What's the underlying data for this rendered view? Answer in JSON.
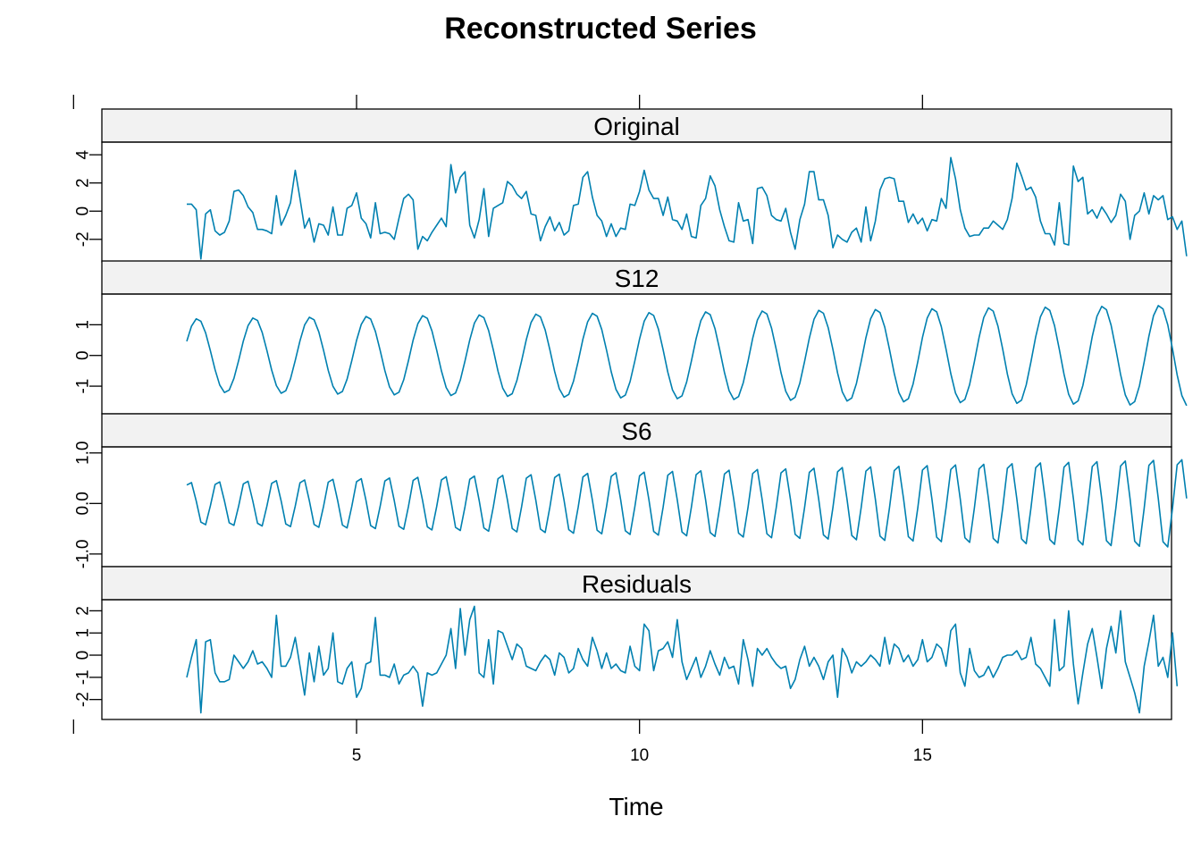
{
  "chart_data": {
    "type": "line",
    "title": "Reconstructed Series",
    "xlabel": "Time",
    "xlim": [
      0.5,
      19.4
    ],
    "x_ticks": [
      5,
      10,
      15
    ],
    "x_start": 2,
    "x_step": 0.0833333,
    "line_color": "#0080b0",
    "panels": [
      {
        "name": "Original",
        "ylim": [
          -3.6,
          4.9
        ],
        "y_ticks": [
          -2,
          0,
          2,
          4
        ],
        "values": [
          0.5,
          0.5,
          0.1,
          -3.4,
          -0.2,
          0.1,
          -1.4,
          -1.7,
          -1.5,
          -0.7,
          1.4,
          1.5,
          1.1,
          0.3,
          -0.1,
          -1.3,
          -1.3,
          -1.4,
          -1.6,
          1.1,
          -1.0,
          -0.3,
          0.6,
          2.9,
          0.9,
          -1.2,
          -0.5,
          -2.2,
          -0.9,
          -1.0,
          -1.7,
          0.3,
          -1.7,
          -1.7,
          0.2,
          0.4,
          1.3,
          -0.5,
          -0.9,
          -1.9,
          0.6,
          -1.6,
          -1.5,
          -1.6,
          -2.0,
          -0.5,
          0.9,
          1.2,
          0.8,
          -2.7,
          -1.8,
          -2.1,
          -1.5,
          -1.0,
          -0.5,
          -1.1,
          3.3,
          1.3,
          2.4,
          2.8,
          -1.0,
          -1.9,
          -0.6,
          1.6,
          -1.8,
          0.2,
          0.4,
          0.6,
          2.1,
          1.8,
          1.2,
          0.9,
          1.4,
          -0.2,
          -0.3,
          -2.1,
          -1.1,
          -0.4,
          -1.4,
          -0.8,
          -1.7,
          -1.4,
          0.4,
          0.5,
          2.4,
          2.8,
          1.0,
          -0.3,
          -0.7,
          -1.8,
          -0.9,
          -1.8,
          -1.2,
          -1.3,
          0.5,
          0.4,
          1.4,
          2.9,
          1.5,
          0.9,
          0.9,
          -0.3,
          1.0,
          -0.6,
          -0.7,
          -1.3,
          -0.2,
          -1.8,
          -1.9,
          0.4,
          0.9,
          2.5,
          1.8,
          0.1,
          -1.1,
          -2.1,
          -2.2,
          0.6,
          -0.7,
          -0.6,
          -2.3,
          1.6,
          1.7,
          1.1,
          -0.3,
          -0.6,
          -0.7,
          0.2,
          -1.5,
          -2.7,
          -0.6,
          0.5,
          2.8,
          2.8,
          0.8,
          0.8,
          -0.3,
          -2.6,
          -1.7,
          -2.0,
          -2.2,
          -1.5,
          -1.2,
          -2.2,
          0.3,
          -2.1,
          -0.7,
          1.5,
          2.3,
          2.4,
          2.3,
          0.7,
          0.7,
          -0.8,
          -0.2,
          -0.9,
          -0.5,
          -1.4,
          -0.6,
          -0.7,
          0.9,
          0.2,
          3.8,
          2.3,
          0.1,
          -1.2,
          -1.8,
          -1.7,
          -1.7,
          -1.2,
          -1.2,
          -0.7,
          -1.0,
          -1.3,
          -0.6,
          0.9,
          3.4,
          2.5,
          1.5,
          1.7,
          1.0,
          -0.7,
          -1.6,
          -1.6,
          -2.4,
          0.6,
          -2.3,
          -2.4,
          3.2,
          2.1,
          2.4,
          -0.2,
          0.1,
          -0.5,
          0.3,
          -0.2,
          -0.8,
          -0.3,
          1.2,
          0.7,
          -2.0,
          -0.3,
          0.0,
          1.3,
          -0.2,
          1.1,
          0.8,
          1.1,
          -0.6,
          -0.4,
          -1.3,
          -0.7,
          -3.2
        ]
      },
      {
        "name": "S12",
        "ylim": [
          -1.9,
          2.0
        ],
        "y_ticks": [
          -1,
          0,
          1
        ],
        "amplitude": [
          1.2,
          1.65
        ],
        "values_note": ""
      },
      {
        "name": "S6",
        "ylim": [
          -1.25,
          1.12
        ],
        "y_ticks": [
          -1.0,
          0.0,
          1.0
        ],
        "amplitude": [
          0.45,
          0.95
        ]
      },
      {
        "name": "Residuals",
        "ylim": [
          -2.9,
          2.5
        ],
        "y_ticks": [
          -2,
          -1,
          0,
          1,
          2
        ],
        "values": [
          -1.0,
          -0.1,
          0.7,
          -2.6,
          0.6,
          0.7,
          -0.8,
          -1.2,
          -1.2,
          -1.1,
          0.0,
          -0.3,
          -0.6,
          -0.3,
          0.2,
          -0.4,
          -0.3,
          -0.6,
          -1.0,
          1.8,
          -0.5,
          -0.5,
          -0.1,
          0.8,
          -0.5,
          -1.8,
          0.1,
          -1.2,
          0.4,
          -0.9,
          -0.6,
          1.0,
          -1.2,
          -1.3,
          -0.6,
          -0.3,
          -1.9,
          -1.5,
          -0.4,
          -0.3,
          1.7,
          -0.9,
          -0.9,
          -1.0,
          -0.4,
          -1.3,
          -0.9,
          -0.8,
          -0.5,
          -0.8,
          -2.3,
          -0.8,
          -0.9,
          -0.8,
          -0.4,
          0.0,
          1.2,
          -0.6,
          2.1,
          0.0,
          1.6,
          2.2,
          -0.8,
          -1.0,
          0.7,
          -1.3,
          1.1,
          1.0,
          0.4,
          -0.2,
          0.5,
          0.3,
          -0.5,
          -0.6,
          -0.7,
          -0.3,
          0.0,
          -0.2,
          -0.9,
          0.1,
          -0.1,
          -0.8,
          -0.6,
          0.3,
          -0.2,
          -0.5,
          0.8,
          0.2,
          -0.6,
          0.1,
          -0.6,
          -0.4,
          -0.7,
          -0.8,
          0.4,
          -0.5,
          -0.7,
          1.4,
          1.1,
          -0.7,
          0.2,
          0.3,
          0.6,
          -0.1,
          1.6,
          -0.3,
          -1.1,
          -0.6,
          -0.1,
          -1.0,
          -0.5,
          0.2,
          -0.4,
          -0.9,
          -0.1,
          -0.6,
          -0.5,
          -1.3,
          0.7,
          -0.2,
          -1.4,
          0.3,
          0.0,
          0.3,
          -0.1,
          -0.4,
          -0.6,
          -0.5,
          -1.5,
          -1.1,
          -0.2,
          0.4,
          -0.5,
          -0.1,
          -0.5,
          -1.1,
          -0.3,
          0.0,
          -1.9,
          0.3,
          -0.1,
          -0.8,
          -0.3,
          -0.5,
          -0.3,
          0.0,
          -0.2,
          -0.5,
          0.8,
          -0.4,
          0.5,
          0.3,
          -0.3,
          0.0,
          -0.5,
          -0.2,
          0.7,
          -0.3,
          -0.1,
          0.5,
          0.3,
          -0.5,
          1.1,
          1.4,
          -0.8,
          -1.4,
          0.3,
          -0.7,
          -1.0,
          -0.9,
          -0.5,
          -1.0,
          -0.6,
          -0.1,
          0.0,
          0.0,
          0.2,
          -0.2,
          -0.1,
          0.8,
          -0.4,
          -0.6,
          -1.0,
          -1.4,
          1.6,
          -0.7,
          -0.5,
          2.0,
          -0.4,
          -2.2,
          -0.8,
          0.5,
          1.2,
          -0.1,
          -1.5,
          0.3,
          1.3,
          0.1,
          2.0,
          -0.3,
          -1.0,
          -1.7,
          -2.6,
          -0.5,
          0.6,
          1.8,
          -0.5,
          -0.1,
          -1.0,
          1.0,
          -1.4
        ]
      }
    ]
  }
}
